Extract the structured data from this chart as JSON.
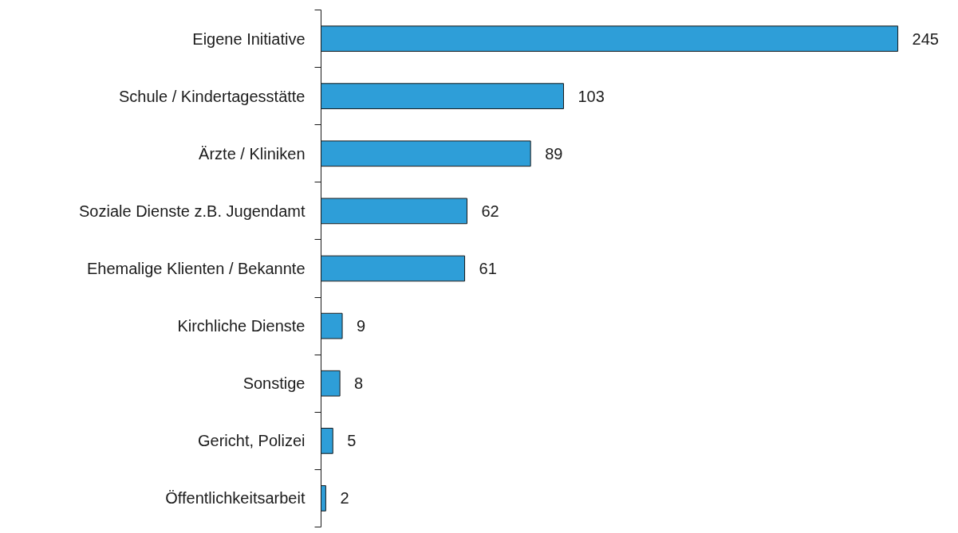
{
  "chart_data": {
    "type": "bar",
    "orientation": "horizontal",
    "categories": [
      "Eigene Initiative",
      "Schule / Kindertagesstätte",
      "Ärzte / Kliniken",
      "Soziale Dienste z.B. Jugendamt",
      "Ehemalige Klienten / Bekannte",
      "Kirchliche Dienste",
      "Sonstige",
      "Gericht, Polizei",
      "Öffentlichkeitsarbeit"
    ],
    "values": [
      245,
      103,
      89,
      62,
      61,
      9,
      8,
      5,
      2
    ],
    "color": "#2e9ed8",
    "data_labels": true
  }
}
